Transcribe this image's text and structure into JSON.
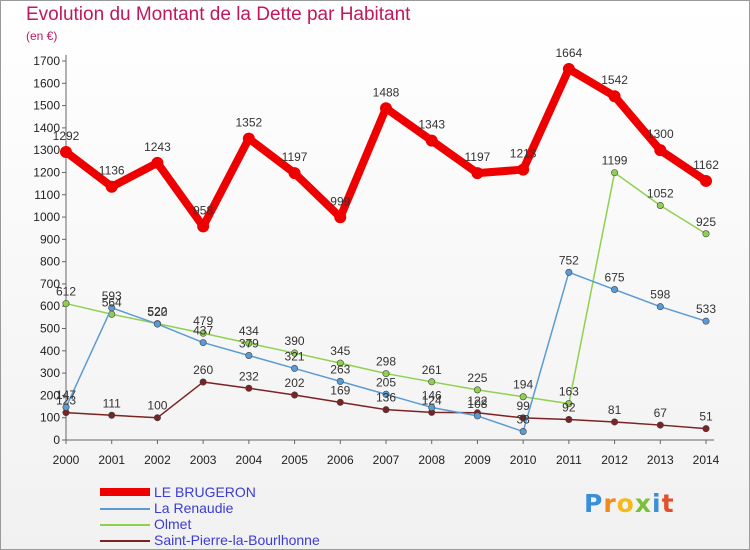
{
  "header": {
    "title": "Evolution du Montant de la Dette par Habitant",
    "subtitle": "(en €)"
  },
  "brand": {
    "label": "Proxiti"
  },
  "chart_data": {
    "type": "line",
    "title": "Evolution du Montant de la Dette par Habitant",
    "subtitle": "(en €)",
    "x": [
      2000,
      2001,
      2002,
      2003,
      2004,
      2005,
      2006,
      2007,
      2008,
      2009,
      2010,
      2011,
      2012,
      2013,
      2014
    ],
    "yticks": [
      0,
      100,
      200,
      300,
      400,
      500,
      600,
      700,
      800,
      900,
      1000,
      1100,
      1200,
      1300,
      1400,
      1500,
      1600,
      1700
    ],
    "ylim": [
      0,
      1700
    ],
    "grid": false,
    "legend_position": "bottom-left",
    "series": [
      {
        "name": "LE BRUGERON",
        "color": "#ee0000",
        "values": [
          1292,
          1136,
          1243,
          958,
          1352,
          1197,
          999,
          1488,
          1343,
          1197,
          1213,
          1664,
          1542,
          1300,
          1162
        ],
        "labels": [
          "1292",
          "1136",
          "1243",
          "958",
          "1352",
          "1197",
          "999",
          "1488",
          "1343",
          "1197",
          "1213",
          "1664",
          "1542",
          "1300",
          "1162"
        ]
      },
      {
        "name": "La Renaudie",
        "color": "#5b9bd5",
        "values": [
          147,
          593,
          520,
          437,
          379,
          321,
          263,
          205,
          146,
          108,
          38,
          752,
          675,
          598,
          533
        ],
        "labels": [
          "147",
          "593",
          "520",
          "437",
          "379",
          "321",
          "263",
          "205",
          "146",
          "108",
          "38",
          "752",
          "675",
          "598",
          "533"
        ]
      },
      {
        "name": "Olmet",
        "color": "#8fd14f",
        "values": [
          612,
          564,
          522,
          479,
          434,
          390,
          345,
          298,
          261,
          225,
          194,
          163,
          1199,
          1052,
          925
        ],
        "labels": [
          "612",
          "564",
          "522",
          "479",
          "434",
          "390",
          "345",
          "298",
          "261",
          "225",
          "194",
          "163",
          "1199",
          "1052",
          "925"
        ]
      },
      {
        "name": "Saint-Pierre-la-Bourlhonne",
        "color": "#7b2323",
        "values": [
          123,
          111,
          100,
          260,
          232,
          202,
          169,
          136,
          124,
          122,
          99,
          92,
          81,
          67,
          51
        ],
        "labels": [
          "123",
          "111",
          "100",
          "260",
          "232",
          "202",
          "169",
          "136",
          "124",
          "122",
          "99",
          "92",
          "81",
          "67",
          "51"
        ]
      }
    ]
  }
}
